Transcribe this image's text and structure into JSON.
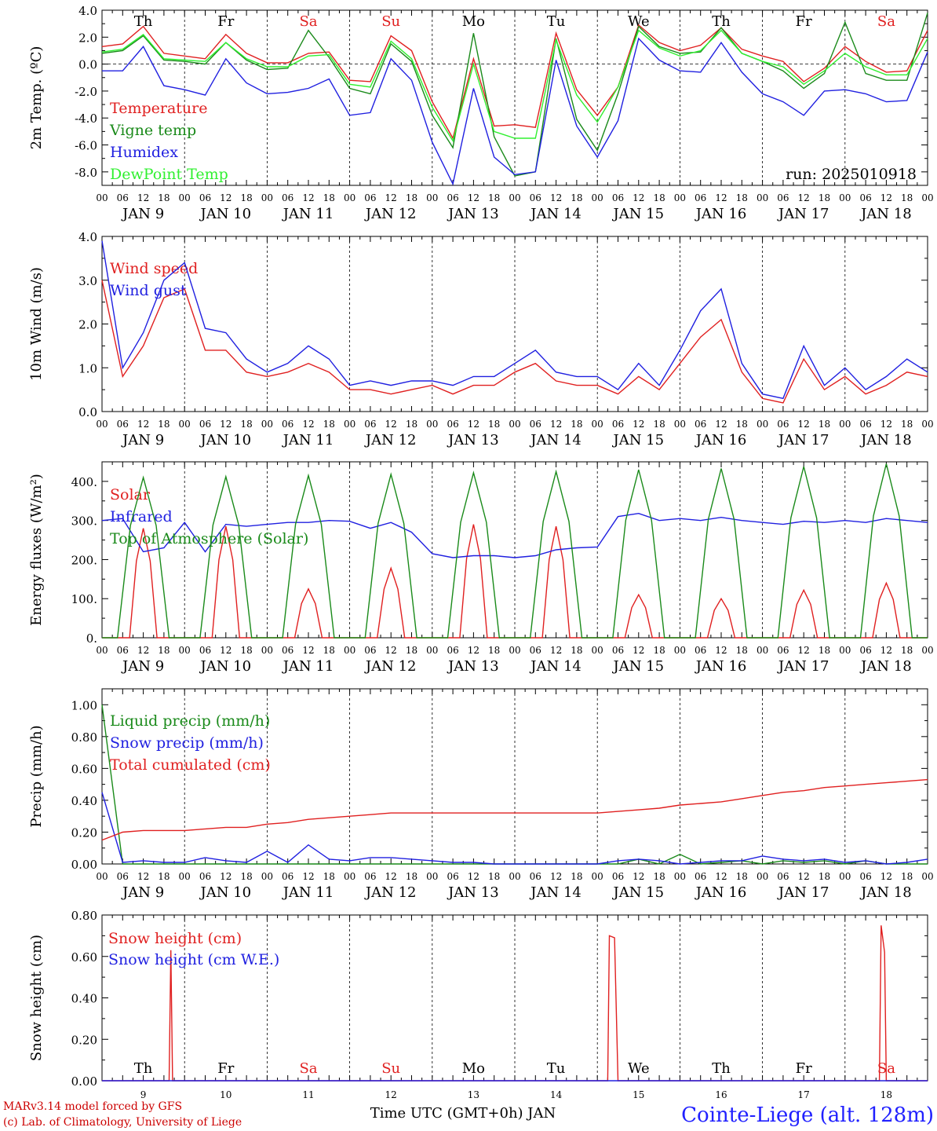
{
  "meta": {
    "run_label": "run: 2025010918",
    "model_line": "MARv3.14 model forced by GFS",
    "lab_line": "(c) Lab. of Climatology, University of Liege",
    "station": "Cointe-Liege (alt. 128m)",
    "xaxis_title": "Time UTC (GMT+0h) JAN"
  },
  "time": {
    "hour_labels": [
      "00",
      "06",
      "12",
      "18"
    ],
    "date_labels": [
      "JAN  9",
      "JAN 10",
      "JAN 11",
      "JAN 12",
      "JAN 13",
      "JAN 14",
      "JAN 15",
      "JAN 16",
      "JAN 17",
      "JAN 18"
    ],
    "day_numbers": [
      "9",
      "10",
      "11",
      "12",
      "13",
      "14",
      "15",
      "16",
      "17",
      "18"
    ],
    "day_names": [
      {
        "name": "Th",
        "color": "#000000"
      },
      {
        "name": "Fr",
        "color": "#000000"
      },
      {
        "name": "Sa",
        "color": "#e02020"
      },
      {
        "name": "Su",
        "color": "#e02020"
      },
      {
        "name": "Mo",
        "color": "#000000"
      },
      {
        "name": "Tu",
        "color": "#000000"
      },
      {
        "name": "We",
        "color": "#000000"
      },
      {
        "name": "Th",
        "color": "#000000"
      },
      {
        "name": "Fr",
        "color": "#000000"
      },
      {
        "name": "Sa",
        "color": "#e02020"
      }
    ]
  },
  "chart_data": [
    {
      "type": "line",
      "id": "temp",
      "ylabel": "2m Temp. (ºC)",
      "ylim": [
        -9,
        4
      ],
      "yticks": [
        -8,
        -6,
        -4,
        -2,
        0,
        2,
        4
      ],
      "ytick_labels": [
        "-8.0",
        "-6.0",
        "-4.0",
        "-2.0",
        "0.0",
        "2.0",
        "4.0"
      ],
      "zero_line": true,
      "x": [
        0,
        6,
        12,
        18,
        24,
        30,
        36,
        42,
        48,
        54,
        60,
        66,
        72,
        78,
        84,
        90,
        96,
        102,
        108,
        114,
        120,
        126,
        132,
        138,
        144,
        150,
        156,
        162,
        168,
        174,
        180,
        186,
        192,
        198,
        204,
        210,
        216,
        222,
        228,
        234,
        240
      ],
      "series": [
        {
          "name": "Temperature",
          "color": "#e02020",
          "values": [
            1.3,
            1.5,
            2.8,
            0.8,
            0.6,
            0.4,
            2.2,
            0.8,
            0.1,
            0.1,
            0.8,
            0.9,
            -1.2,
            -1.3,
            2.1,
            1.0,
            -2.8,
            -5.5,
            0.4,
            -4.6,
            -4.5,
            -4.7,
            2.3,
            -1.9,
            -3.8,
            -1.7,
            2.9,
            1.6,
            1.0,
            1.4,
            2.7,
            1.1,
            0.6,
            0.2,
            -1.3,
            -0.3,
            1.3,
            0.2,
            -0.6,
            -0.5,
            2.5
          ]
        },
        {
          "name": "Vigne temp",
          "color": "#1a8a1a",
          "values": [
            0.8,
            1.0,
            2.1,
            0.3,
            0.2,
            0.0,
            1.6,
            0.3,
            -0.4,
            -0.3,
            2.5,
            0.5,
            -1.8,
            -2.2,
            1.5,
            0.2,
            -3.8,
            -6.2,
            2.3,
            -5.4,
            -8.3,
            -8.0,
            1.9,
            -4.1,
            -6.4,
            -2.2,
            2.8,
            1.3,
            0.8,
            0.9,
            2.7,
            0.8,
            0.2,
            -0.5,
            -1.8,
            -0.7,
            3.1,
            -0.7,
            -1.2,
            -1.2,
            3.8
          ]
        },
        {
          "name": "Humidex",
          "color": "#2020e0",
          "values": [
            -0.5,
            -0.5,
            1.3,
            -1.6,
            -1.9,
            -2.3,
            0.4,
            -1.4,
            -2.2,
            -2.1,
            -1.8,
            -1.1,
            -3.8,
            -3.6,
            0.4,
            -1.2,
            -5.8,
            -8.9,
            -1.8,
            -6.9,
            -8.2,
            -8.0,
            0.3,
            -4.6,
            -6.9,
            -4.2,
            1.9,
            0.3,
            -0.5,
            -0.6,
            1.6,
            -0.6,
            -2.2,
            -2.8,
            -3.8,
            -2.0,
            -1.9,
            -2.2,
            -2.8,
            -2.7,
            0.9
          ]
        },
        {
          "name": "DewPoint Temp",
          "color": "#30f030",
          "values": [
            0.9,
            1.1,
            2.2,
            0.4,
            0.3,
            0.2,
            1.6,
            0.4,
            -0.2,
            -0.2,
            0.6,
            0.7,
            -1.5,
            -1.7,
            1.7,
            0.4,
            -3.2,
            -5.7,
            0.0,
            -5.0,
            -5.5,
            -5.5,
            1.8,
            -2.3,
            -4.3,
            -1.7,
            2.5,
            1.2,
            0.6,
            1.0,
            2.5,
            0.8,
            0.2,
            -0.2,
            -1.5,
            -0.5,
            0.8,
            -0.2,
            -0.8,
            -0.8,
            1.9
          ]
        }
      ]
    },
    {
      "type": "line",
      "id": "wind",
      "ylabel": "10m Wind (m/s)",
      "ylim": [
        0,
        4
      ],
      "yticks": [
        0,
        1,
        2,
        3,
        4
      ],
      "ytick_labels": [
        "0.0",
        "1.0",
        "2.0",
        "3.0",
        "4.0"
      ],
      "x": [
        0,
        6,
        12,
        18,
        24,
        30,
        36,
        42,
        48,
        54,
        60,
        66,
        72,
        78,
        84,
        90,
        96,
        102,
        108,
        114,
        120,
        126,
        132,
        138,
        144,
        150,
        156,
        162,
        168,
        174,
        180,
        186,
        192,
        198,
        204,
        210,
        216,
        222,
        228,
        234,
        240
      ],
      "series": [
        {
          "name": "Wind speed",
          "color": "#e02020",
          "values": [
            3.0,
            0.8,
            1.5,
            2.6,
            2.8,
            1.4,
            1.4,
            0.9,
            0.8,
            0.9,
            1.1,
            0.9,
            0.5,
            0.5,
            0.4,
            0.5,
            0.6,
            0.4,
            0.6,
            0.6,
            0.9,
            1.1,
            0.7,
            0.6,
            0.6,
            0.4,
            0.8,
            0.5,
            1.1,
            1.7,
            2.1,
            0.9,
            0.3,
            0.2,
            1.2,
            0.5,
            0.8,
            0.4,
            0.6,
            0.9,
            0.8
          ]
        },
        {
          "name": "Wind gust",
          "color": "#2020e0",
          "values": [
            3.9,
            1.0,
            1.8,
            3.0,
            3.4,
            1.9,
            1.8,
            1.2,
            0.9,
            1.1,
            1.5,
            1.2,
            0.6,
            0.7,
            0.6,
            0.7,
            0.7,
            0.6,
            0.8,
            0.8,
            1.1,
            1.4,
            0.9,
            0.8,
            0.8,
            0.5,
            1.1,
            0.6,
            1.4,
            2.3,
            2.8,
            1.1,
            0.4,
            0.3,
            1.5,
            0.6,
            1.0,
            0.5,
            0.8,
            1.2,
            0.9
          ]
        }
      ]
    },
    {
      "type": "line",
      "id": "energy",
      "ylabel": "Energy fluxes (W/m²)",
      "ylim": [
        0,
        450
      ],
      "yticks": [
        0,
        100,
        200,
        300,
        400
      ],
      "ytick_labels": [
        "0.",
        "100.",
        "200.",
        "300.",
        "400."
      ],
      "x_energy_peak_hours": [
        12,
        36,
        60,
        84,
        108,
        132,
        156,
        180,
        204,
        228
      ],
      "series": [
        {
          "name": "Solar",
          "color": "#e02020",
          "peaks": [
            280,
            285,
            125,
            178,
            290,
            285,
            110,
            100,
            122,
            140
          ]
        },
        {
          "name": "Infrared",
          "color": "#2020e0",
          "x": [
            0,
            6,
            12,
            18,
            24,
            30,
            36,
            42,
            48,
            54,
            60,
            66,
            72,
            78,
            84,
            90,
            96,
            102,
            108,
            114,
            120,
            126,
            132,
            138,
            144,
            150,
            156,
            162,
            168,
            174,
            180,
            186,
            192,
            198,
            204,
            210,
            216,
            222,
            228,
            234,
            240
          ],
          "values": [
            300,
            305,
            220,
            230,
            295,
            220,
            290,
            285,
            290,
            295,
            295,
            300,
            298,
            280,
            295,
            270,
            215,
            205,
            210,
            210,
            205,
            210,
            225,
            230,
            232,
            310,
            318,
            300,
            305,
            300,
            308,
            300,
            295,
            290,
            298,
            295,
            300,
            295,
            305,
            300,
            295
          ]
        },
        {
          "name": "Top of Atmosphere (Solar)",
          "color": "#1a8a1a",
          "peaks": [
            410,
            412,
            415,
            418,
            422,
            425,
            430,
            433,
            438,
            445
          ]
        }
      ]
    },
    {
      "type": "line",
      "id": "precip",
      "ylabel": "Precip (mm/h)",
      "ylim": [
        0,
        1.1
      ],
      "yticks": [
        0,
        0.2,
        0.4,
        0.6,
        0.8,
        1.0
      ],
      "ytick_labels": [
        "0.00",
        "0.20",
        "0.40",
        "0.60",
        "0.80",
        "1.00"
      ],
      "x": [
        0,
        6,
        12,
        18,
        24,
        30,
        36,
        42,
        48,
        54,
        60,
        66,
        72,
        78,
        84,
        90,
        96,
        102,
        108,
        114,
        120,
        126,
        132,
        138,
        144,
        150,
        156,
        162,
        168,
        174,
        180,
        186,
        192,
        198,
        204,
        210,
        216,
        222,
        228,
        234,
        240
      ],
      "series": [
        {
          "name": "Liquid precip (mm/h)",
          "color": "#1a8a1a",
          "values": [
            1.0,
            0.0,
            0.0,
            0.0,
            0.0,
            0.0,
            0.0,
            0.0,
            0.0,
            0.0,
            0.0,
            0.0,
            0.0,
            0.0,
            0.0,
            0.0,
            0.0,
            0.0,
            0.0,
            0.0,
            0.0,
            0.0,
            0.0,
            0.0,
            0.0,
            0.0,
            0.03,
            0.0,
            0.06,
            0.0,
            0.01,
            0.02,
            0.0,
            0.02,
            0.01,
            0.02,
            0.0,
            0.02,
            0.0,
            0.0,
            0.0
          ]
        },
        {
          "name": "Snow precip (mm/h)",
          "color": "#2020e0",
          "values": [
            0.45,
            0.01,
            0.02,
            0.01,
            0.01,
            0.04,
            0.02,
            0.01,
            0.08,
            0.01,
            0.12,
            0.03,
            0.02,
            0.04,
            0.04,
            0.03,
            0.02,
            0.01,
            0.01,
            0.0,
            0.0,
            0.0,
            0.0,
            0.0,
            0.0,
            0.02,
            0.03,
            0.02,
            0.0,
            0.01,
            0.02,
            0.02,
            0.05,
            0.03,
            0.02,
            0.03,
            0.01,
            0.02,
            0.0,
            0.01,
            0.03
          ]
        },
        {
          "name": "Total cumulated (cm)",
          "color": "#e02020",
          "values": [
            0.15,
            0.2,
            0.21,
            0.21,
            0.21,
            0.22,
            0.23,
            0.23,
            0.25,
            0.26,
            0.28,
            0.29,
            0.3,
            0.31,
            0.32,
            0.32,
            0.32,
            0.32,
            0.32,
            0.32,
            0.32,
            0.32,
            0.32,
            0.32,
            0.32,
            0.33,
            0.34,
            0.35,
            0.37,
            0.38,
            0.39,
            0.41,
            0.43,
            0.45,
            0.46,
            0.48,
            0.49,
            0.5,
            0.51,
            0.52,
            0.53
          ]
        }
      ]
    },
    {
      "type": "line",
      "id": "snow",
      "ylabel": "Snow height (cm)",
      "ylim": [
        0,
        0.8
      ],
      "yticks": [
        0,
        0.2,
        0.4,
        0.6,
        0.8
      ],
      "ytick_labels": [
        "0.00",
        "0.20",
        "0.40",
        "0.60",
        "0.80"
      ],
      "series": [
        {
          "name": "Snow height (cm)",
          "color": "#e02020",
          "points": [
            [
              0,
              0
            ],
            [
              19.5,
              0
            ],
            [
              20,
              0.63
            ],
            [
              20.5,
              0
            ],
            [
              147,
              0
            ],
            [
              147.5,
              0.7
            ],
            [
              149,
              0.69
            ],
            [
              150,
              0
            ],
            [
              226,
              0
            ],
            [
              226.5,
              0.75
            ],
            [
              227.5,
              0.62
            ],
            [
              228,
              0
            ],
            [
              240,
              0
            ]
          ]
        },
        {
          "name": "Snow height (cm W.E.)",
          "color": "#2020e0",
          "points": [
            [
              0,
              0
            ],
            [
              240,
              0
            ]
          ]
        }
      ]
    }
  ]
}
